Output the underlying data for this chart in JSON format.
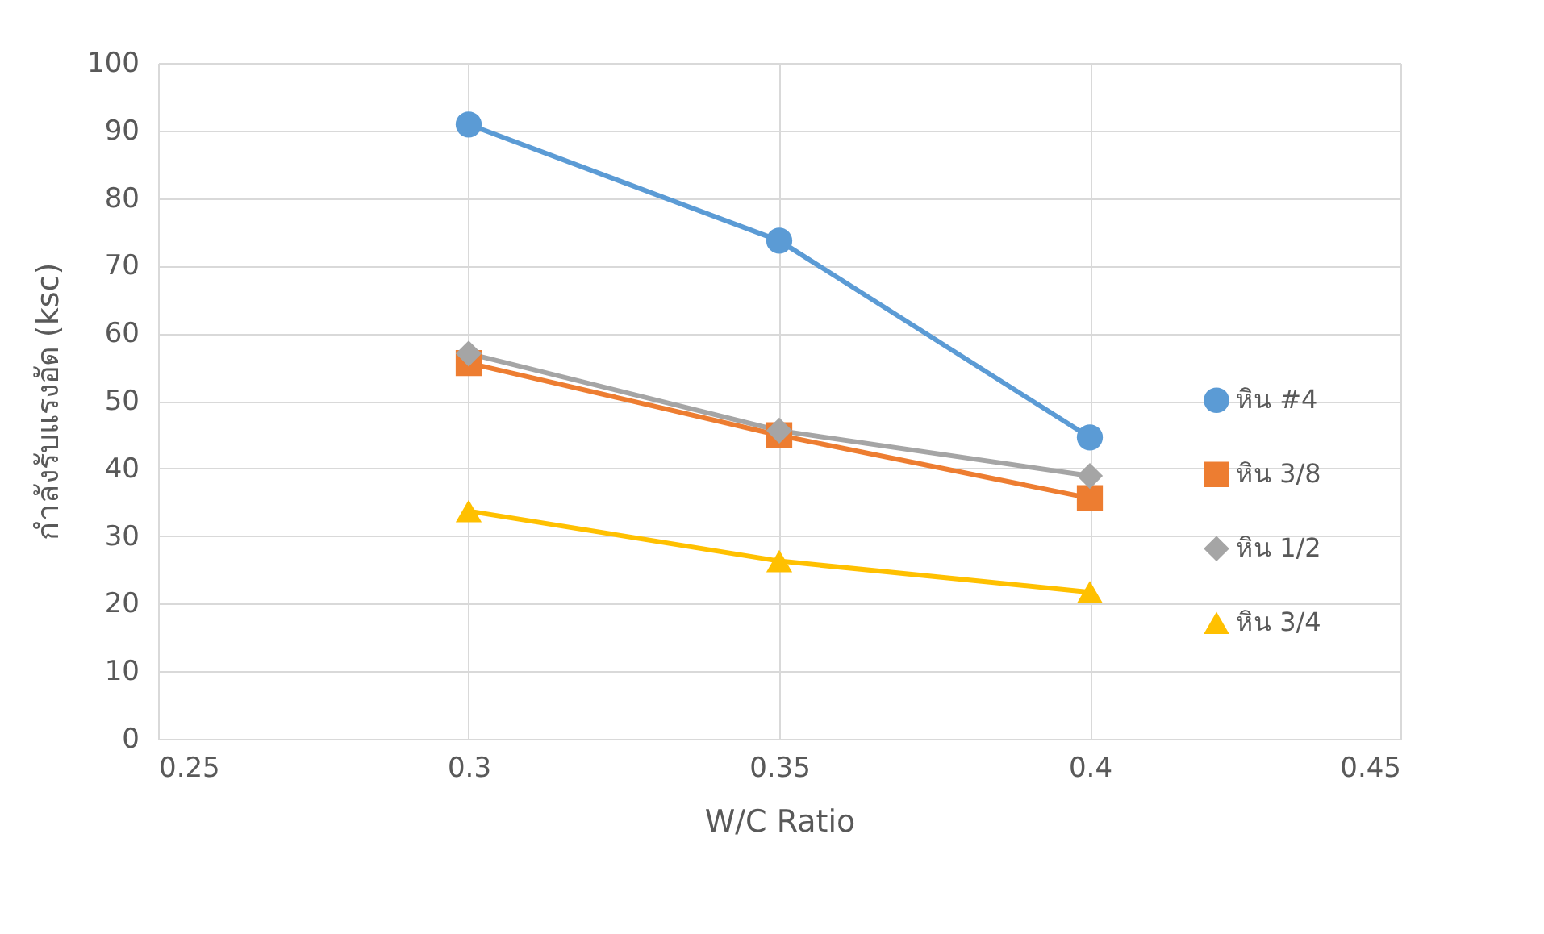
{
  "chart_data": {
    "type": "line",
    "xlabel": "W/C Ratio",
    "ylabel": "กำลังรับแรงอัด (ksc)",
    "x": [
      0.3,
      0.35,
      0.4
    ],
    "series": [
      {
        "name": "หิน #4",
        "color": "#5b9bd5",
        "marker": "circle",
        "values": [
          90.9,
          73.7,
          44.6
        ]
      },
      {
        "name": "หิน 3/8",
        "color": "#ed7d31",
        "marker": "square",
        "values": [
          55.6,
          44.9,
          35.6
        ]
      },
      {
        "name": "หิน 1/2",
        "color": "#a5a5a5",
        "marker": "diamond",
        "values": [
          57.0,
          45.6,
          38.9
        ]
      },
      {
        "name": "หิน 3/4",
        "color": "#ffc000",
        "marker": "triangle",
        "values": [
          33.7,
          26.3,
          21.7
        ]
      }
    ],
    "xlim": [
      0.25,
      0.45
    ],
    "xticks": [
      0.25,
      0.3,
      0.35,
      0.4,
      0.45
    ],
    "ylim": [
      0,
      100
    ],
    "yticks": [
      0,
      10,
      20,
      30,
      40,
      50,
      60,
      70,
      80,
      90,
      100
    ],
    "grid": true,
    "legend": "right",
    "line_style": "solid"
  }
}
